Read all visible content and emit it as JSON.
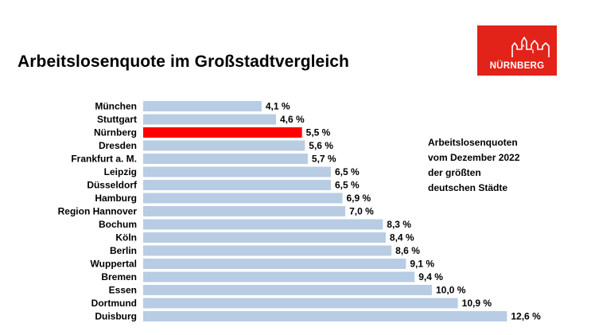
{
  "page": {
    "title": "Arbeitslosenquote im Großstadtvergleich",
    "logo_text": "NÜRNBERG",
    "logo_color": "#e2231a"
  },
  "annotation": {
    "lines": [
      "Arbeitslosenquoten",
      "vom Dezember 2022",
      "der größten",
      "deutschen Städte"
    ]
  },
  "chart_data": {
    "type": "bar",
    "orientation": "horizontal",
    "categories": [
      "München",
      "Stuttgart",
      "Nürnberg",
      "Dresden",
      "Frankfurt a. M.",
      "Leipzig",
      "Düsseldorf",
      "Hamburg",
      "Region Hannover",
      "Bochum",
      "Köln",
      "Berlin",
      "Wuppertal",
      "Bremen",
      "Essen",
      "Dortmund",
      "Duisburg"
    ],
    "values": [
      4.1,
      4.6,
      5.5,
      5.6,
      5.7,
      6.5,
      6.5,
      6.9,
      7.0,
      8.3,
      8.4,
      8.6,
      9.1,
      9.4,
      10.0,
      10.9,
      12.6
    ],
    "value_labels": [
      "4,1 %",
      "4,6 %",
      "5,5 %",
      "5,6 %",
      "5,7 %",
      "6,5 %",
      "6,5 %",
      "6,9 %",
      "7,0 %",
      "8,3 %",
      "8,4 %",
      "8,6 %",
      "9,1 %",
      "9,4 %",
      "10,0 %",
      "10,9 %",
      "12,6 %"
    ],
    "highlight_category": "Nürnberg",
    "colors": {
      "bar": "#b8cce4",
      "highlight": "#ff0000"
    },
    "grid": false,
    "legend": "none"
  }
}
